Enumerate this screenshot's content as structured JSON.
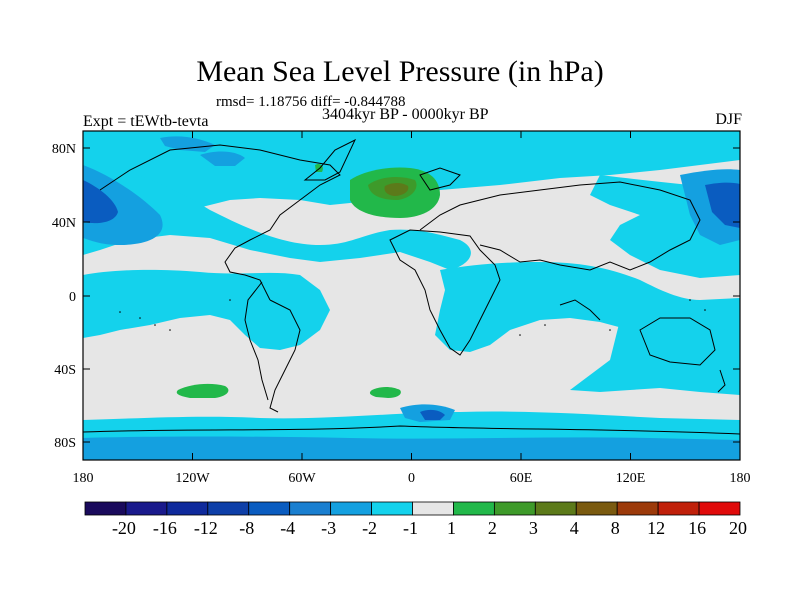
{
  "title": "Mean Sea Level Pressure (in hPa)",
  "stats": "rmsd= 1.18756 diff= -0.844788",
  "period": "3404kyr BP - 0000kyr BP",
  "experiment": "Expt = tEWtb-tevta",
  "season": "DJF",
  "lat_ticks": [
    "80N",
    "40N",
    "0",
    "40S",
    "80S"
  ],
  "lon_ticks": [
    "180",
    "120W",
    "60W",
    "0",
    "60E",
    "120E",
    "180"
  ],
  "colorbar": {
    "labels": [
      "-20",
      "-16",
      "-12",
      "-8",
      "-4",
      "-3",
      "-2",
      "-1",
      "1",
      "2",
      "3",
      "4",
      "8",
      "12",
      "16",
      "20"
    ],
    "colors": [
      "#1a0a5c",
      "#1a1a8c",
      "#0f2a9c",
      "#0e3fa8",
      "#0a5cc0",
      "#1a7fd0",
      "#14a0e0",
      "#14d2ec",
      "#e6e6e6",
      "#22b84a",
      "#3e9a2a",
      "#5c7a1a",
      "#7a5a10",
      "#9c3a0a",
      "#c0200a",
      "#e00a0a"
    ]
  },
  "colors": {
    "neutral": "#e6e6e6",
    "light_negative": "#14d2ec",
    "mid_negative": "#14a0e0",
    "strong_negative": "#0a5cc0",
    "light_positive": "#22b84a",
    "mid_positive": "#3e9a2a",
    "strong_positive": "#5c7a1a"
  }
}
